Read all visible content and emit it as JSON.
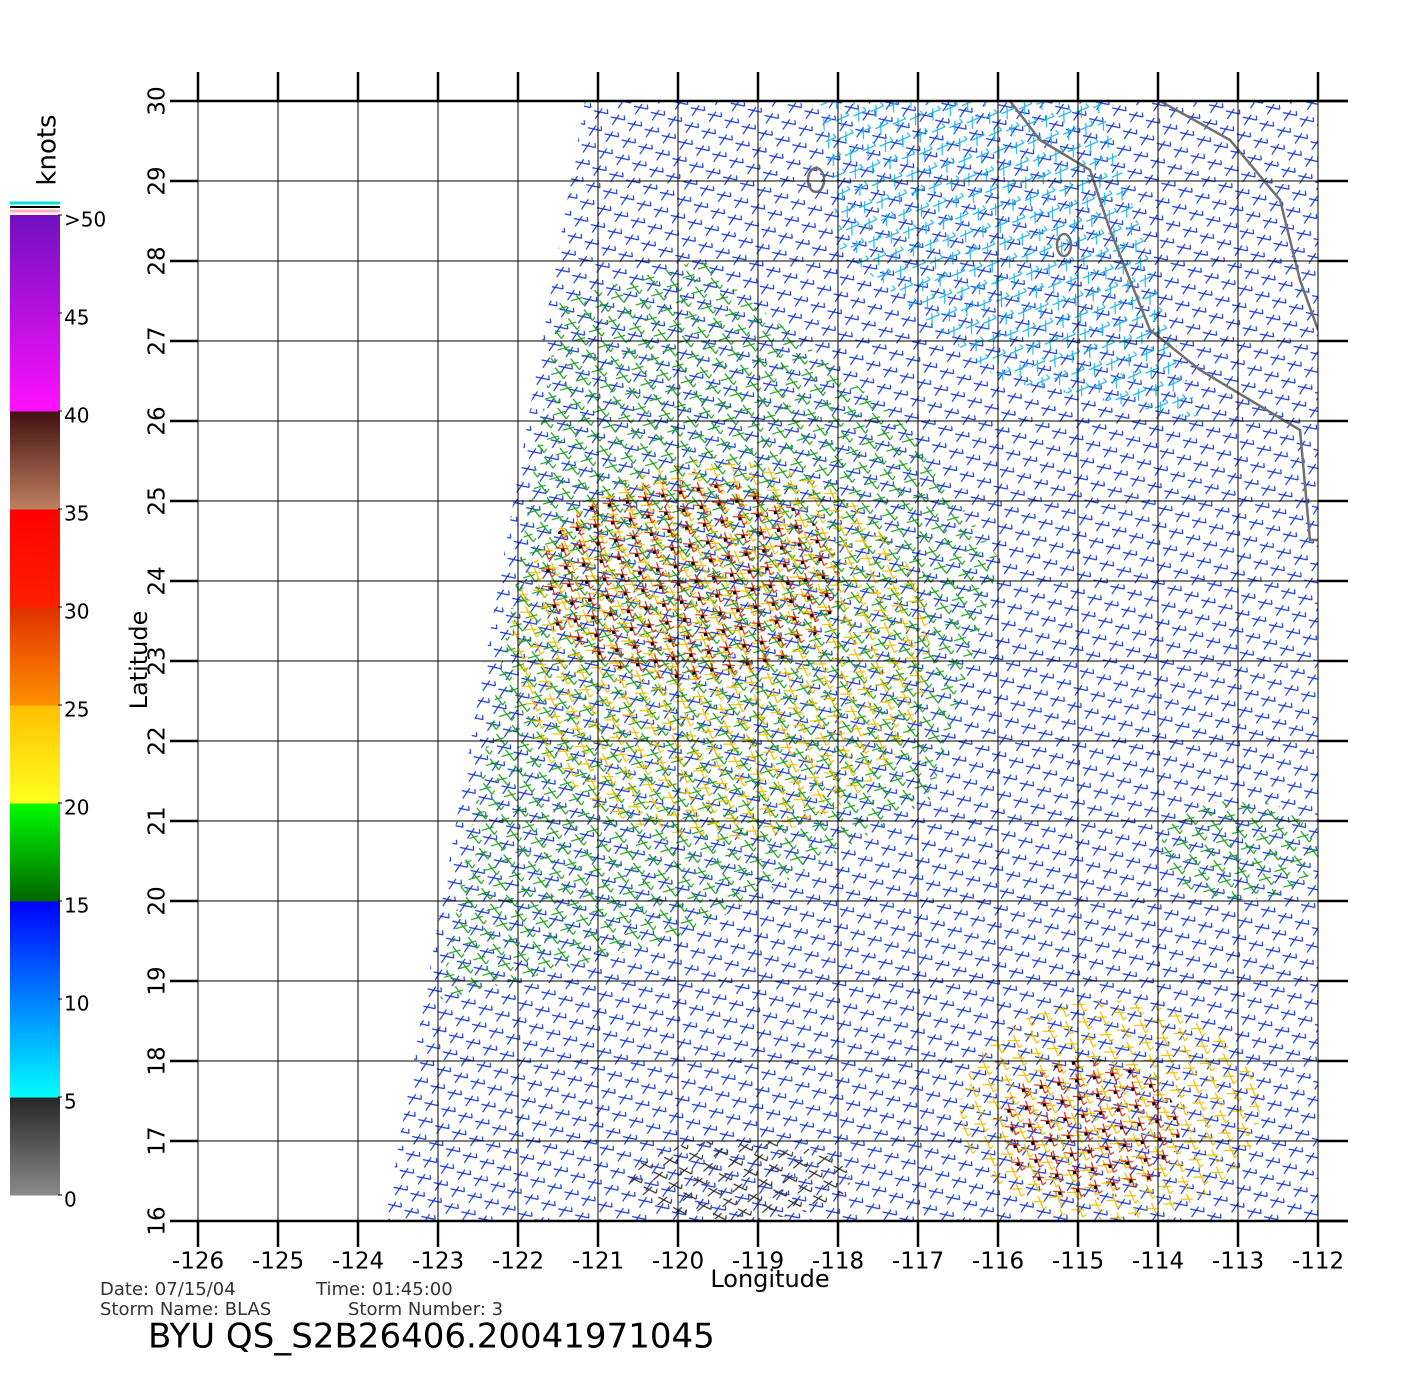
{
  "chart_data": {
    "type": "wind-map",
    "xlabel": "Longitude",
    "ylabel": "Latitude",
    "xlim": [
      -126,
      -112
    ],
    "xticks": [
      -126,
      -125,
      -124,
      -123,
      -122,
      -121,
      -120,
      -119,
      -118,
      -117,
      -116,
      -115,
      -114,
      -113,
      -112
    ],
    "ylim": [
      16,
      30
    ],
    "yticks": [
      16,
      17,
      18,
      19,
      20,
      21,
      22,
      23,
      24,
      25,
      26,
      27,
      28,
      29,
      30
    ],
    "grid": true,
    "colorbar": {
      "label": "knots",
      "lim": [
        0,
        50
      ],
      "ticks": [
        0,
        5,
        10,
        15,
        20,
        25,
        30,
        35,
        40,
        45,
        {
          "value": 50,
          "label": ">50"
        }
      ],
      "bands": [
        {
          "from": 0,
          "to": 5,
          "colors": [
            "#8a8a8a",
            "#262626"
          ]
        },
        {
          "from": 5,
          "to": 15,
          "colors": [
            "#00ffff",
            "#0000ff"
          ]
        },
        {
          "from": 15,
          "to": 20,
          "colors": [
            "#006400",
            "#00ff00"
          ]
        },
        {
          "from": 20,
          "to": 25,
          "colors": [
            "#ffff20",
            "#ffc000"
          ]
        },
        {
          "from": 25,
          "to": 30,
          "colors": [
            "#ff9000",
            "#e03000"
          ]
        },
        {
          "from": 30,
          "to": 35,
          "colors": [
            "#ff2000",
            "#ff0000"
          ]
        },
        {
          "from": 35,
          "to": 40,
          "colors": [
            "#c08060",
            "#401010"
          ]
        },
        {
          "from": 40,
          "to": 50,
          "colors": [
            "#ff10ff",
            "#7010c0"
          ]
        }
      ]
    },
    "date_label": "Date:  07/15/04",
    "time_label": "Time:  01:45:00",
    "storm_name_label": "Storm  Name:  BLAS",
    "storm_number_label": "Storm  Number:  3",
    "title": "BYU  QS_S2B26406.20041971045"
  }
}
